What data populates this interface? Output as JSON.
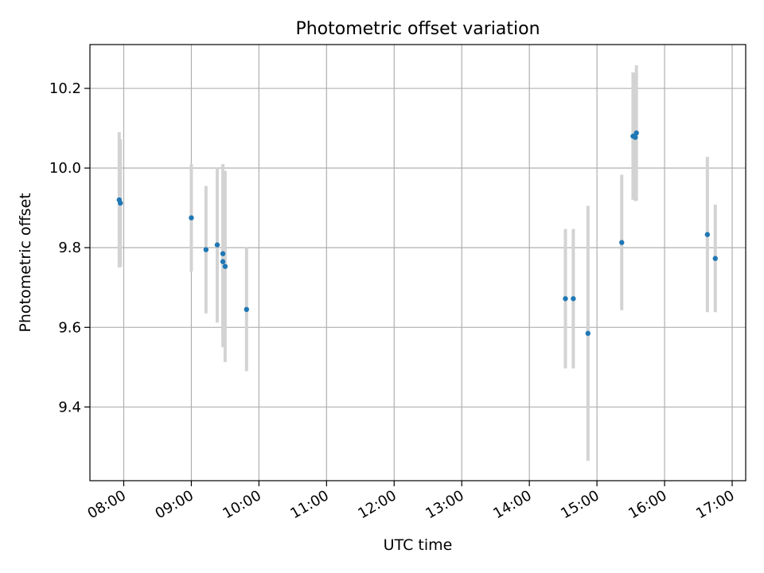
{
  "chart_data": {
    "type": "scatter",
    "title": "Photometric offset variation",
    "xlabel": "UTC time",
    "ylabel": "Photometric offset",
    "x_unit": "time",
    "xlim": [
      "07:30",
      "17:12"
    ],
    "ylim": [
      9.215,
      10.31
    ],
    "xticks": [
      "08:00",
      "09:00",
      "10:00",
      "11:00",
      "12:00",
      "13:00",
      "14:00",
      "15:00",
      "16:00",
      "17:00"
    ],
    "yticks": [
      9.4,
      9.6,
      9.8,
      10.0,
      10.2
    ],
    "ytick_labels": [
      "9.4",
      "9.6",
      "9.8",
      "10.0",
      "10.2"
    ],
    "grid": true,
    "legend": "none",
    "colors": {
      "points": "#1f77b4",
      "errorbars": "#d3d3d3",
      "grid": "#b0b0b0"
    },
    "series": [
      {
        "points": [
          {
            "x": "07:56",
            "y": 9.92,
            "yerr": 0.17
          },
          {
            "x": "07:57",
            "y": 9.912,
            "yerr": 0.16
          },
          {
            "x": "09:00",
            "y": 9.875,
            "yerr": 0.135
          },
          {
            "x": "09:13",
            "y": 9.795,
            "yerr": 0.16
          },
          {
            "x": "09:23",
            "y": 9.807,
            "yerr": 0.195
          },
          {
            "x": "09:28",
            "y": 9.785,
            "yerr": 0.225
          },
          {
            "x": "09:28",
            "y": 9.765,
            "yerr": 0.215
          },
          {
            "x": "09:30",
            "y": 9.753,
            "yerr": 0.24
          },
          {
            "x": "09:49",
            "y": 9.645,
            "yerr": 0.155
          },
          {
            "x": "14:32",
            "y": 9.672,
            "yerr": 0.175
          },
          {
            "x": "14:39",
            "y": 9.672,
            "yerr": 0.175
          },
          {
            "x": "14:52",
            "y": 9.585,
            "yerr": 0.32
          },
          {
            "x": "15:22",
            "y": 9.813,
            "yerr": 0.17
          },
          {
            "x": "15:32",
            "y": 10.08,
            "yerr": 0.16
          },
          {
            "x": "15:34",
            "y": 10.077,
            "yerr": 0.16
          },
          {
            "x": "15:35",
            "y": 10.088,
            "yerr": 0.17
          },
          {
            "x": "16:38",
            "y": 9.833,
            "yerr": 0.195
          },
          {
            "x": "16:45",
            "y": 9.773,
            "yerr": 0.135
          }
        ]
      }
    ]
  }
}
